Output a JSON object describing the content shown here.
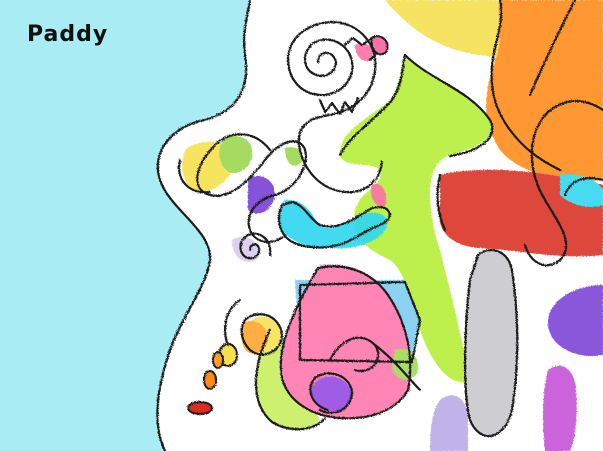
{
  "artwork": {
    "caption": "Paddy",
    "background_color": "#a9ecf4",
    "palette": {
      "sky": "#a9ecf4",
      "yellow": "#f6e04e",
      "orange": "#ff8a14",
      "red": "#d92e22",
      "lime": "#b6ee35",
      "green": "#9cd84e",
      "cyan": "#2fd7f0",
      "purple": "#7a3fd6",
      "pink": "#ff6fa7",
      "magenta": "#c44fd6",
      "grey": "#c8c8cc",
      "lilac": "#b9a8e6",
      "outline": "#1a1a1a"
    }
  }
}
